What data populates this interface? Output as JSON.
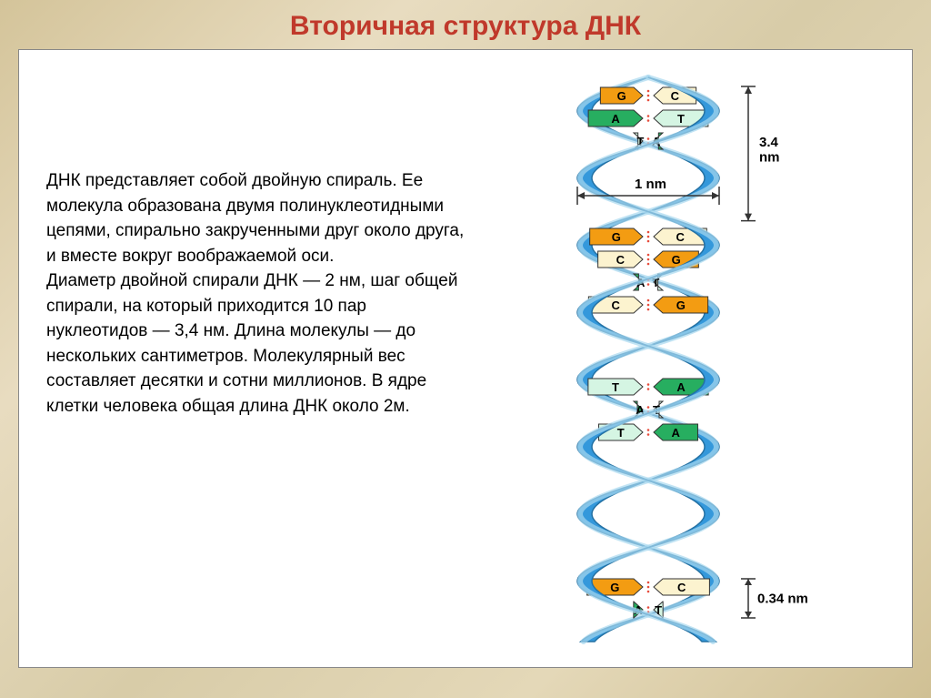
{
  "title": "Вторичная структура ДНК",
  "body_text": "ДНК представляет собой двойную спираль. Ее молекула образована двумя полинуклеотидными цепями, спирально закрученными друг около друга, и вместе вокруг воображаемой оси.\nДиаметр двойной спирали ДНК — 2 нм, шаг общей спирали, на который приходится 10 пар нуклеотидов — 3,4 нм. Длина молекулы — до нескольких сантиметров. Молекулярный вес составляет десятки и сотни миллионов. В ядре клетки человека общая длина ДНК около 2м.",
  "diagram": {
    "colors": {
      "backbone_light": "#a8d8f0",
      "backbone_dark": "#3498db",
      "backbone_stroke": "#2471a3",
      "g_fill": "#f39c12",
      "g_fill_light": "#f8c471",
      "c_fill": "#f4d03f",
      "c_fill_light": "#fcf3cf",
      "a_fill": "#27ae60",
      "a_fill_light": "#a9dfbf",
      "t_fill": "#58d68d",
      "t_fill_light": "#d5f5e3",
      "bond_color": "#e74c3c",
      "dim_line": "#333333",
      "text": "#000000"
    },
    "labels": {
      "width": "1 nm",
      "turn": "3.4\nnm",
      "rise": "0.34 nm"
    },
    "bases": {
      "G": "G",
      "C": "C",
      "A": "A",
      "T": "T"
    },
    "turn_pairs": [
      {
        "left": "G",
        "right": "C",
        "dir": "lr"
      },
      {
        "left": "A",
        "right": "T",
        "dir": "lr"
      },
      {
        "left": "T",
        "right": "A",
        "dir": "rl"
      }
    ],
    "mid_pairs1": [
      {
        "left": "G",
        "right": "C",
        "dir": "lr"
      },
      {
        "left": "C",
        "right": "G",
        "dir": "rl"
      },
      {
        "left": "A",
        "right": "T",
        "dir": "lr"
      },
      {
        "left": "C",
        "right": "G",
        "dir": "rl"
      }
    ],
    "mid_pairs2": [
      {
        "left": "T",
        "right": "A",
        "dir": "rl"
      },
      {
        "left": "A",
        "right": "T",
        "dir": "lr"
      },
      {
        "left": "T",
        "right": "A",
        "dir": "rl"
      }
    ],
    "bottom_pairs": [
      {
        "left": "G",
        "right": "C",
        "dir": "lr"
      },
      {
        "left": "A",
        "right": "T",
        "dir": "lr"
      }
    ],
    "font": {
      "base_label_size": 13,
      "base_label_weight": "bold",
      "dim_label_size": 15,
      "dim_label_weight": "bold"
    }
  }
}
